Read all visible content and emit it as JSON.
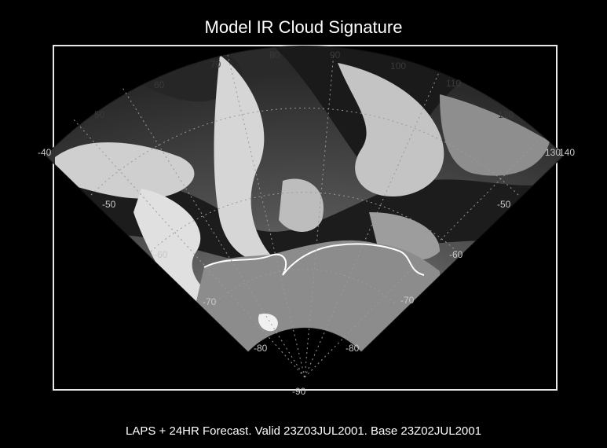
{
  "title": "Model IR Cloud Signature",
  "caption": "LAPS + 24HR Forecast. Valid 23Z03JUL2001. Base 23Z02JUL2001",
  "map": {
    "projection": "polar stereographic sector",
    "longitude_labels": [
      "-40",
      "50",
      "60",
      "70",
      "80",
      "90",
      "100",
      "110",
      "120",
      "130",
      "140"
    ],
    "latitude_labels_left": [
      "-50",
      "-60",
      "-70",
      "-80"
    ],
    "latitude_labels_right": [
      "-50",
      "-60",
      "-70",
      "-80"
    ],
    "pole_label": "-90",
    "grid": true,
    "colors": {
      "background": "#000000",
      "frame": "#e8e8e8",
      "coastline": "#ffffff",
      "cloud_high": "#e6e6e6",
      "cloud_mid": "#9a9a9a",
      "cloud_low": "#3c3c3c"
    }
  }
}
